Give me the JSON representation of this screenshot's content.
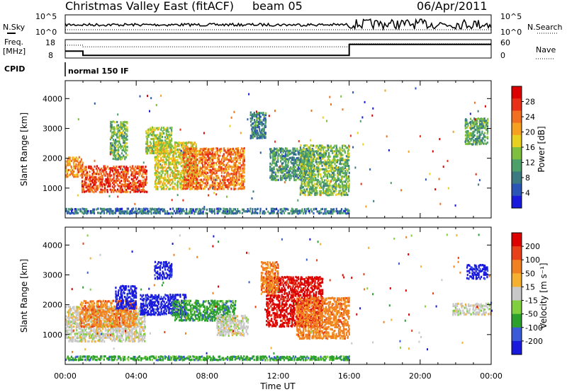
{
  "header": {
    "title": "Christmas Valley East (fitACF)",
    "beam": "beam 05",
    "date": "06/Apr/2011"
  },
  "top_panels": {
    "nsky_label": "N.Sky",
    "nsky_ticks": [
      "10^5",
      "10^0"
    ],
    "nsearch_label": "N.Search",
    "nsearch_ticks": [
      "10^5",
      "10^0"
    ],
    "freq_label": "Freq.",
    "freq_unit": "[MHz]",
    "freq_ticks": [
      "18",
      "8"
    ],
    "nave_label": "Nave",
    "nave_ticks": [
      "60",
      "0"
    ],
    "cpid_label": "CPID",
    "cpid_value": "normal 150 IF",
    "freq_steps": [
      [
        0,
        11.5
      ],
      [
        1.0,
        11.5
      ],
      [
        1.0,
        8.8
      ],
      [
        16.0,
        8.8
      ],
      [
        16.0,
        15.8
      ],
      [
        24,
        15.8
      ]
    ],
    "nave_steps": [
      [
        0,
        44
      ],
      [
        1.0,
        44
      ],
      [
        1.0,
        38
      ],
      [
        16.0,
        38
      ],
      [
        16.0,
        50
      ],
      [
        24,
        50
      ]
    ]
  },
  "chart_data": [
    {
      "type": "heatmap",
      "name": "power",
      "x_range_hours": [
        0,
        24
      ],
      "xticks": [
        "00:00",
        "04:00",
        "08:00",
        "12:00",
        "16:00",
        "20:00",
        "00:00"
      ],
      "ylabel": "Slant Range [km]",
      "ylim": [
        0,
        4600
      ],
      "yticks": [
        "1000",
        "2000",
        "3000",
        "4000"
      ],
      "colorbar_label": "Power [dB]",
      "colorbar_ticks": [
        "4",
        "8",
        "12",
        "16",
        "20",
        "24",
        "28"
      ],
      "colorbar_colors": [
        "#1a1adc",
        "#2a55b4",
        "#3a7a80",
        "#4da06a",
        "#7fbf3f",
        "#e8d020",
        "#f5a020",
        "#f07020",
        "#e83018",
        "#dd0000"
      ],
      "regions": [
        {
          "t": [
            0.0,
            1.0
          ],
          "r": [
            1400,
            2100
          ],
          "level": 0.7
        },
        {
          "t": [
            0.9,
            4.6
          ],
          "r": [
            900,
            1800
          ],
          "level": 0.85
        },
        {
          "t": [
            2.5,
            3.5
          ],
          "r": [
            2000,
            3300
          ],
          "level": 0.4
        },
        {
          "t": [
            4.5,
            6.0
          ],
          "r": [
            2200,
            3100
          ],
          "level": 0.45
        },
        {
          "t": [
            5.0,
            7.4
          ],
          "r": [
            1000,
            2600
          ],
          "level": 0.55
        },
        {
          "t": [
            6.6,
            10.1
          ],
          "r": [
            1000,
            2400
          ],
          "level": 0.75
        },
        {
          "t": [
            10.4,
            11.3
          ],
          "r": [
            2700,
            3600
          ],
          "level": 0.25
        },
        {
          "t": [
            11.5,
            14.0
          ],
          "r": [
            1300,
            2400
          ],
          "level": 0.3
        },
        {
          "t": [
            13.2,
            16.0
          ],
          "r": [
            800,
            2500
          ],
          "level": 0.4
        },
        {
          "t": [
            22.5,
            23.8
          ],
          "r": [
            2500,
            3400
          ],
          "level": 0.35
        },
        {
          "t": [
            0.0,
            16.0
          ],
          "r": [
            180,
            380
          ],
          "level": 0.2
        }
      ]
    },
    {
      "type": "heatmap",
      "name": "velocity",
      "x_range_hours": [
        0,
        24
      ],
      "xticks": [
        "00:00",
        "04:00",
        "08:00",
        "12:00",
        "16:00",
        "20:00",
        "00:00"
      ],
      "xlabel": "Time UT",
      "ylabel": "Slant Range [km]",
      "ylim": [
        0,
        4600
      ],
      "yticks": [
        "1000",
        "2000",
        "3000",
        "4000"
      ],
      "colorbar_label": "Velocity [m s⁻¹]",
      "colorbar_ticks": [
        "200",
        "100",
        "50",
        "15",
        "-15",
        "-50",
        "-100",
        "-200"
      ],
      "colorbar_colors": [
        "#1a1adc",
        "#3a5ad8",
        "#2ca02c",
        "#7fcf3f",
        "#c8c8c8",
        "#f5b030",
        "#f08020",
        "#e84018",
        "#dd0000"
      ],
      "regions": [
        {
          "t": [
            0.0,
            4.5
          ],
          "r": [
            800,
            2000
          ],
          "level": "gray"
        },
        {
          "t": [
            0.8,
            4.0
          ],
          "r": [
            1300,
            2200
          ],
          "level": "orange"
        },
        {
          "t": [
            2.8,
            4.0
          ],
          "r": [
            1900,
            2700
          ],
          "level": "blue"
        },
        {
          "t": [
            5.0,
            6.0
          ],
          "r": [
            2900,
            3500
          ],
          "level": "blue"
        },
        {
          "t": [
            4.2,
            6.8
          ],
          "r": [
            1700,
            2400
          ],
          "level": "blue"
        },
        {
          "t": [
            6.0,
            9.6
          ],
          "r": [
            1500,
            2200
          ],
          "level": "green"
        },
        {
          "t": [
            8.5,
            10.3
          ],
          "r": [
            1000,
            1700
          ],
          "level": "gray"
        },
        {
          "t": [
            11.3,
            14.5
          ],
          "r": [
            1300,
            3000
          ],
          "level": "red"
        },
        {
          "t": [
            13.0,
            16.0
          ],
          "r": [
            900,
            2300
          ],
          "level": "orange"
        },
        {
          "t": [
            11.0,
            12.0
          ],
          "r": [
            2400,
            3500
          ],
          "level": "orange"
        },
        {
          "t": [
            22.6,
            23.8
          ],
          "r": [
            2900,
            3400
          ],
          "level": "blue"
        },
        {
          "t": [
            21.8,
            24.0
          ],
          "r": [
            1700,
            2100
          ],
          "level": "gray"
        },
        {
          "t": [
            0.0,
            16.0
          ],
          "r": [
            180,
            330
          ],
          "level": "green"
        }
      ]
    }
  ]
}
